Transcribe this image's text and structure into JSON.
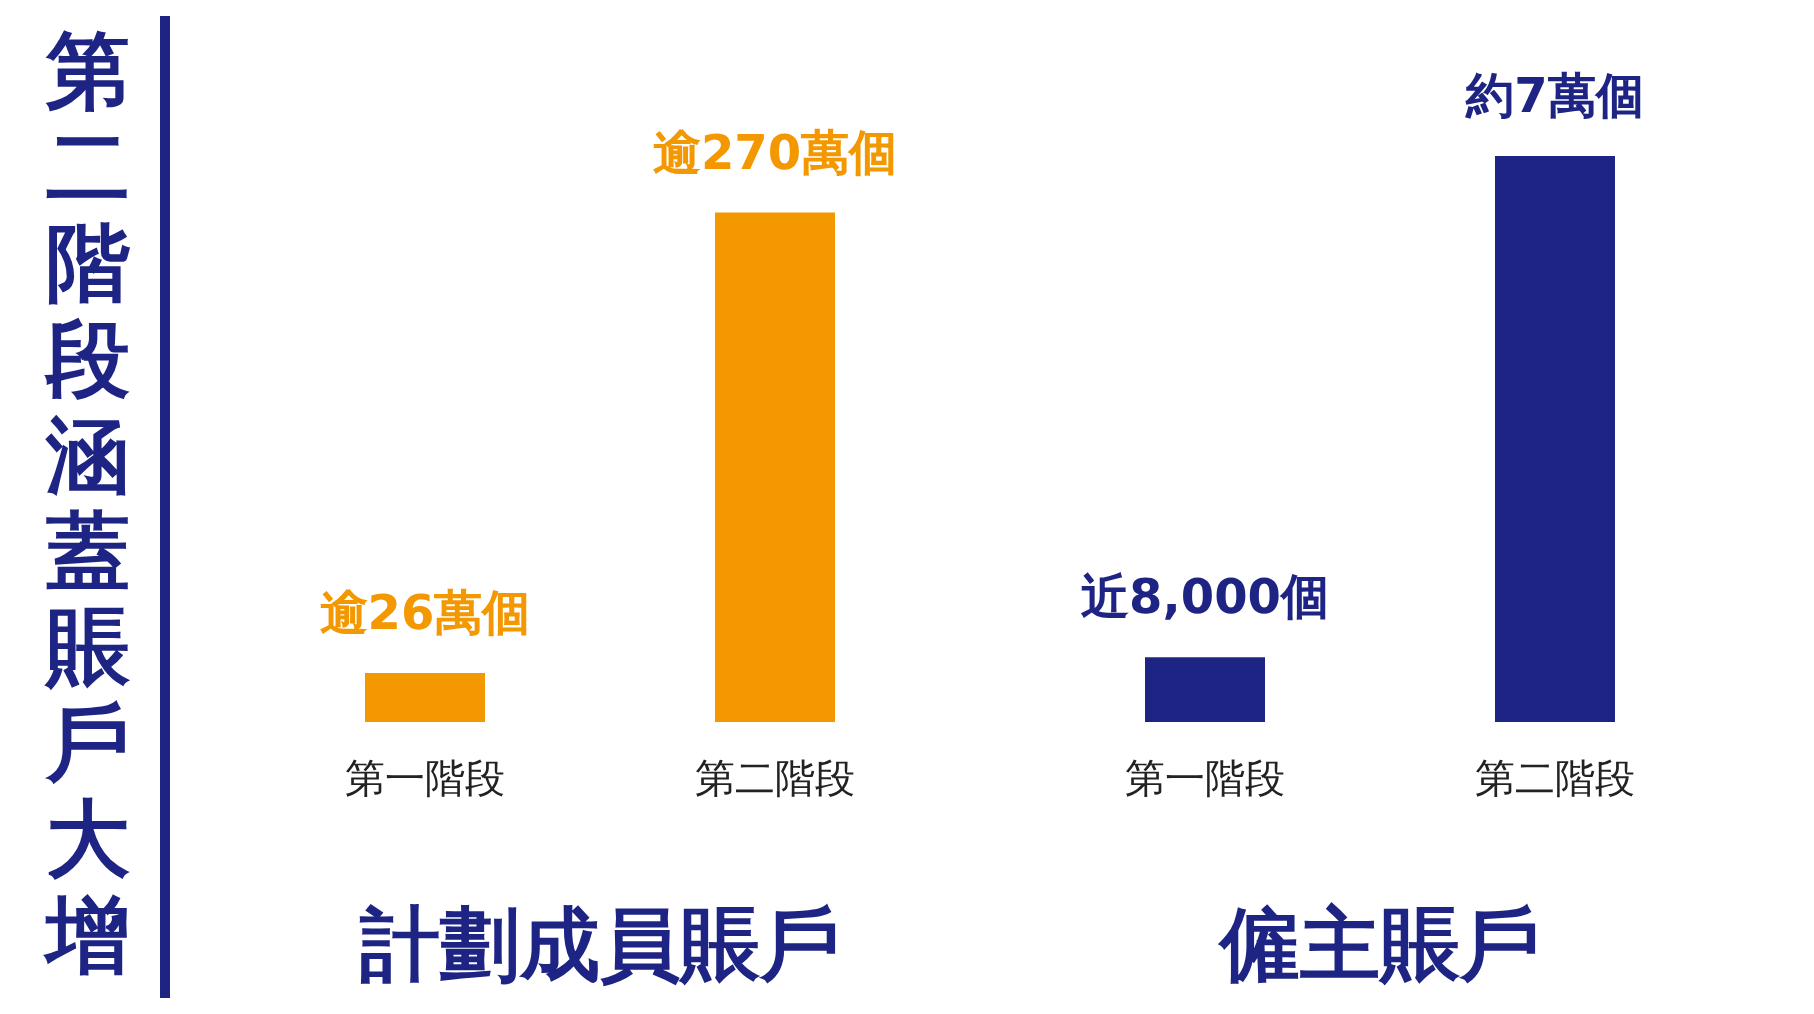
{
  "chart_data": [
    {
      "type": "bar",
      "title": "第二階段涵蓋賬戶大增",
      "xlabel": "計劃成員賬戶",
      "categories": [
        "第一階段",
        "第二階段"
      ],
      "values": [
        26,
        270
      ],
      "value_labels": [
        "逾26萬個",
        "逾270萬個"
      ],
      "color": "#f39800",
      "grid": false
    },
    {
      "type": "bar",
      "xlabel": "僱主賬戶",
      "categories": [
        "第一階段",
        "第二階段"
      ],
      "values": [
        8000,
        70000
      ],
      "value_labels": [
        "近8,000個",
        "約7萬個"
      ],
      "color": "#1e2483",
      "grid": false
    }
  ]
}
